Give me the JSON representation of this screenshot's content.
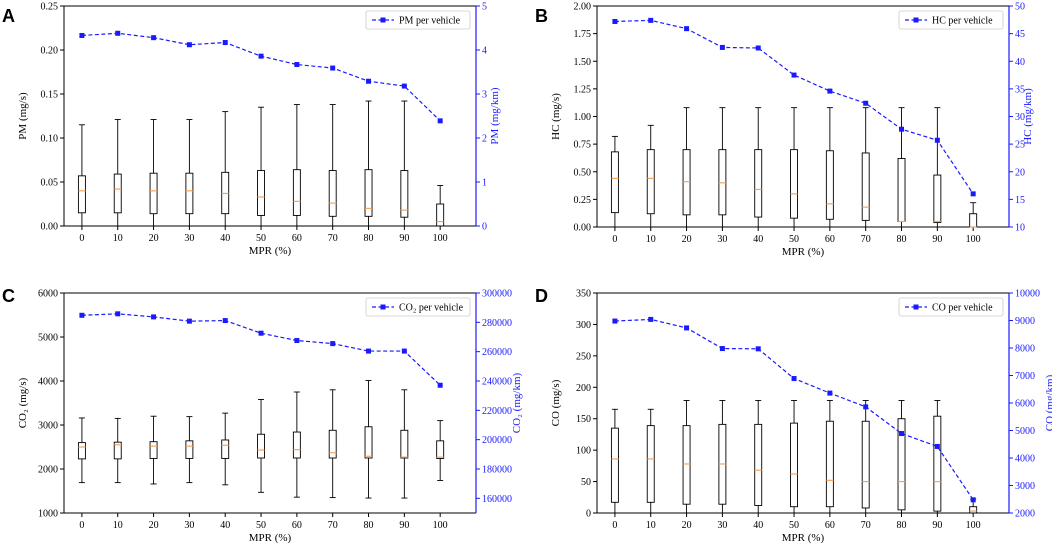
{
  "colors": {
    "line": "#1a1aff",
    "median": "#f4a460",
    "box": "#000000",
    "axis_right": "#1a1aff"
  },
  "chart_data": [
    {
      "panel": "A",
      "type": "box+line",
      "xlabel": "MPR (%)",
      "ylabel": "PM (mg/s)",
      "y2label": "PM (mg/km)",
      "legend": "PM per vehicle",
      "legend_position": "top-right",
      "categories": [
        "0",
        "10",
        "20",
        "30",
        "40",
        "50",
        "60",
        "70",
        "80",
        "90",
        "100"
      ],
      "ylim": [
        0,
        0.25
      ],
      "yticks": [
        "0.00",
        "0.05",
        "0.10",
        "0.15",
        "0.20",
        "0.25"
      ],
      "yticks_v": [
        0,
        0.05,
        0.1,
        0.15,
        0.2,
        0.25
      ],
      "y2lim": [
        0,
        5
      ],
      "y2ticks": [
        "0",
        "1",
        "2",
        "3",
        "4",
        "5"
      ],
      "y2ticks_v": [
        0,
        1,
        2,
        3,
        4,
        5
      ],
      "box": {
        "min": [
          0.0,
          0.0,
          0.0,
          0.0,
          0.0,
          0.0,
          0.0,
          0.0,
          0.0,
          0.0,
          0.0
        ],
        "q1": [
          0.015,
          0.015,
          0.014,
          0.014,
          0.014,
          0.012,
          0.012,
          0.011,
          0.011,
          0.01,
          0.0
        ],
        "median": [
          0.04,
          0.042,
          0.04,
          0.04,
          0.037,
          0.033,
          0.028,
          0.026,
          0.02,
          0.018,
          0.005
        ],
        "q3": [
          0.057,
          0.059,
          0.06,
          0.06,
          0.061,
          0.063,
          0.064,
          0.063,
          0.064,
          0.063,
          0.025
        ],
        "max": [
          0.115,
          0.121,
          0.121,
          0.121,
          0.13,
          0.135,
          0.138,
          0.138,
          0.142,
          0.142,
          0.046
        ]
      },
      "line": [
        4.33,
        4.38,
        4.28,
        4.12,
        4.17,
        3.86,
        3.67,
        3.59,
        3.29,
        3.18,
        2.39
      ]
    },
    {
      "panel": "B",
      "type": "box+line",
      "xlabel": "MPR (%)",
      "ylabel": "HC (mg/s)",
      "y2label": "HC (mg/km)",
      "legend": "HC per vehicle",
      "legend_position": "top-right",
      "categories": [
        "0",
        "10",
        "20",
        "30",
        "40",
        "50",
        "60",
        "70",
        "80",
        "90",
        "100"
      ],
      "ylim": [
        0,
        2.0
      ],
      "yticks": [
        "0.00",
        "0.25",
        "0.50",
        "0.75",
        "1.00",
        "1.25",
        "1.50",
        "1.75",
        "2.00"
      ],
      "yticks_v": [
        0,
        0.25,
        0.5,
        0.75,
        1.0,
        1.25,
        1.5,
        1.75,
        2.0
      ],
      "y2lim": [
        10,
        50
      ],
      "y2ticks": [
        "10",
        "15",
        "20",
        "25",
        "30",
        "35",
        "40",
        "45",
        "50"
      ],
      "y2ticks_v": [
        10,
        15,
        20,
        25,
        30,
        35,
        40,
        45,
        50
      ],
      "box": {
        "min": [
          0.0,
          0.0,
          0.0,
          0.0,
          0.0,
          0.0,
          0.0,
          0.0,
          0.0,
          0.0,
          0.0
        ],
        "q1": [
          0.13,
          0.12,
          0.11,
          0.11,
          0.09,
          0.08,
          0.07,
          0.06,
          0.05,
          0.04,
          0.0
        ],
        "median": [
          0.44,
          0.44,
          0.41,
          0.4,
          0.34,
          0.3,
          0.21,
          0.18,
          0.05,
          0.05,
          0.0
        ],
        "q3": [
          0.68,
          0.7,
          0.7,
          0.7,
          0.7,
          0.7,
          0.69,
          0.67,
          0.62,
          0.47,
          0.12
        ],
        "max": [
          0.82,
          0.92,
          1.08,
          1.08,
          1.08,
          1.08,
          1.08,
          1.08,
          1.08,
          1.08,
          0.22
        ]
      },
      "line": [
        47.2,
        47.4,
        45.9,
        42.5,
        42.4,
        37.5,
        34.6,
        32.4,
        27.7,
        25.7,
        16.0
      ]
    },
    {
      "panel": "C",
      "type": "box+line",
      "xlabel": "MPR (%)",
      "ylabel": "CO₂ (mg/s)",
      "y2label": "CO₂ (mg/km)",
      "legend": "CO₂ per vehicle",
      "legend_position": "top-right",
      "categories": [
        "0",
        "10",
        "20",
        "30",
        "40",
        "50",
        "60",
        "70",
        "80",
        "90",
        "100"
      ],
      "ylim": [
        1000,
        6000
      ],
      "yticks": [
        "1000",
        "2000",
        "3000",
        "4000",
        "5000",
        "6000"
      ],
      "yticks_v": [
        1000,
        2000,
        3000,
        4000,
        5000,
        6000
      ],
      "y2lim": [
        150000,
        300000
      ],
      "y2ticks": [
        "160000",
        "180000",
        "200000",
        "220000",
        "240000",
        "260000",
        "280000",
        "300000"
      ],
      "y2ticks_v": [
        160000,
        180000,
        200000,
        220000,
        240000,
        260000,
        280000,
        300000
      ],
      "box": {
        "min": [
          1690,
          1690,
          1660,
          1690,
          1640,
          1470,
          1360,
          1350,
          1340,
          1340,
          1740
        ],
        "q1": [
          2230,
          2230,
          2240,
          2240,
          2240,
          2250,
          2250,
          2250,
          2250,
          2250,
          2240
        ],
        "median": [
          2500,
          2550,
          2520,
          2520,
          2540,
          2430,
          2440,
          2370,
          2290,
          2270,
          2270
        ],
        "q3": [
          2600,
          2610,
          2620,
          2640,
          2660,
          2790,
          2840,
          2880,
          2960,
          2880,
          2640
        ],
        "max": [
          3160,
          3150,
          3200,
          3190,
          3270,
          3580,
          3750,
          3800,
          4010,
          3800,
          3100
        ]
      },
      "line": [
        284800,
        285800,
        283700,
        280800,
        281200,
        272600,
        267600,
        265500,
        260400,
        260400,
        237100
      ]
    },
    {
      "panel": "D",
      "type": "box+line",
      "xlabel": "MPR (%)",
      "ylabel": "CO (mg/s)",
      "y2label": "CO (mg/km)",
      "legend": "CO per vehicle",
      "legend_position": "top-right",
      "categories": [
        "0",
        "10",
        "20",
        "30",
        "40",
        "50",
        "60",
        "70",
        "80",
        "90",
        "100"
      ],
      "ylim": [
        0,
        350
      ],
      "yticks": [
        "0",
        "50",
        "100",
        "150",
        "200",
        "250",
        "300",
        "350"
      ],
      "yticks_v": [
        0,
        50,
        100,
        150,
        200,
        250,
        300,
        350
      ],
      "y2lim": [
        2000,
        10000
      ],
      "y2ticks": [
        "2000",
        "3000",
        "4000",
        "5000",
        "6000",
        "7000",
        "8000",
        "9000",
        "10000"
      ],
      "y2ticks_v": [
        2000,
        3000,
        4000,
        5000,
        6000,
        7000,
        8000,
        9000,
        10000
      ],
      "box": {
        "min": [
          0,
          0,
          0,
          0,
          0,
          0,
          0,
          0,
          0,
          0,
          0
        ],
        "q1": [
          17,
          17,
          14,
          14,
          12,
          10,
          10,
          8,
          5,
          3,
          0
        ],
        "median": [
          86,
          86,
          78,
          78,
          68,
          62,
          52,
          50,
          50,
          50,
          3
        ],
        "q3": [
          135,
          139,
          139,
          141,
          141,
          143,
          146,
          146,
          150,
          154,
          10
        ],
        "max": [
          165,
          165,
          179,
          179,
          179,
          179,
          179,
          179,
          179,
          179,
          22
        ]
      },
      "line": [
        8980,
        9040,
        8730,
        7980,
        7970,
        6890,
        6360,
        5860,
        4890,
        4420,
        2480
      ]
    }
  ]
}
